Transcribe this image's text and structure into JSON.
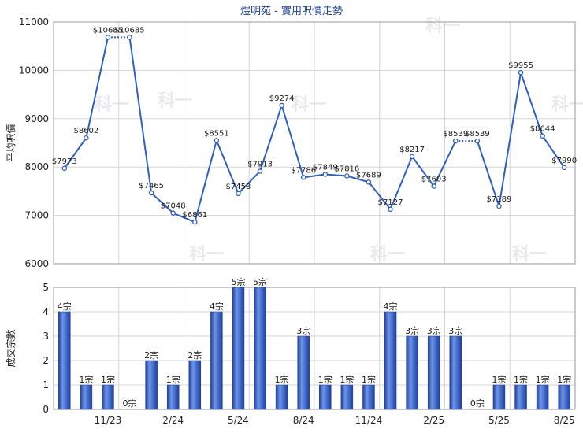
{
  "title": "煜明苑 - 實用呎價走勢",
  "chart_data": [
    {
      "type": "line",
      "ylabel": "平均呎價",
      "ylim": [
        6000,
        11000
      ],
      "yticks": [
        6000,
        7000,
        8000,
        9000,
        10000,
        11000
      ],
      "x_labels": [
        "11/23",
        "2/24",
        "5/24",
        "8/24",
        "11/24",
        "2/25",
        "5/25",
        "8/25"
      ],
      "x_label_indices": [
        2,
        5,
        8,
        11,
        14,
        17,
        20,
        23
      ],
      "points": [
        {
          "i": 0,
          "value": 7973,
          "label": "$7973"
        },
        {
          "i": 1,
          "value": 8602,
          "label": "$8602"
        },
        {
          "i": 2,
          "value": 10685,
          "label": "$10685"
        },
        {
          "i": 3,
          "value": 10685,
          "label": "$10685"
        },
        {
          "i": 4,
          "value": 7465,
          "label": "$7465"
        },
        {
          "i": 5,
          "value": 7048,
          "label": "$7048"
        },
        {
          "i": 6,
          "value": 6861,
          "label": "$6861"
        },
        {
          "i": 7,
          "value": 8551,
          "label": "$8551"
        },
        {
          "i": 8,
          "value": 7453,
          "label": "$7453"
        },
        {
          "i": 9,
          "value": 7913,
          "label": "$7913"
        },
        {
          "i": 10,
          "value": 9274,
          "label": "$9274"
        },
        {
          "i": 11,
          "value": 7786,
          "label": "$7786"
        },
        {
          "i": 12,
          "value": 7849,
          "label": "$7849"
        },
        {
          "i": 13,
          "value": 7816,
          "label": "$7816"
        },
        {
          "i": 14,
          "value": 7689,
          "label": "$7689"
        },
        {
          "i": 15,
          "value": 7127,
          "label": "$7127"
        },
        {
          "i": 16,
          "value": 8217,
          "label": "$8217"
        },
        {
          "i": 17,
          "value": 7603,
          "label": "$7603"
        },
        {
          "i": 18,
          "value": 8539,
          "label": "$8539"
        },
        {
          "i": 19,
          "value": 8539,
          "label": "$8539"
        },
        {
          "i": 20,
          "value": 7189,
          "label": "$7189"
        },
        {
          "i": 21,
          "value": 9955,
          "label": "$9955"
        },
        {
          "i": 22,
          "value": 8644,
          "label": "$8644"
        },
        {
          "i": 23,
          "value": 7990,
          "label": "$7990"
        }
      ],
      "dotted_segments": [
        [
          2,
          3
        ],
        [
          18,
          19
        ]
      ]
    },
    {
      "type": "bar",
      "ylabel": "成交宗數",
      "ylim": [
        0,
        5
      ],
      "yticks": [
        0,
        1,
        2,
        3,
        4,
        5
      ],
      "values": [
        4,
        1,
        1,
        0,
        2,
        1,
        2,
        4,
        5,
        5,
        1,
        3,
        1,
        1,
        1,
        4,
        3,
        3,
        3,
        0,
        1,
        1,
        1,
        1
      ],
      "labels": [
        "4宗",
        "1宗",
        "1宗",
        "0宗",
        "2宗",
        "1宗",
        "2宗",
        "4宗",
        "5宗",
        "5宗",
        "1宗",
        "3宗",
        "1宗",
        "1宗",
        "1宗",
        "4宗",
        "3宗",
        "3宗",
        "3宗",
        "0宗",
        "1宗",
        "1宗",
        "1宗",
        "1宗"
      ],
      "x_labels": [
        "11/23",
        "2/24",
        "5/24",
        "8/24",
        "11/24",
        "2/25",
        "5/25",
        "8/25"
      ],
      "bar_color": "#2f5fc0"
    }
  ],
  "watermark": "科一"
}
